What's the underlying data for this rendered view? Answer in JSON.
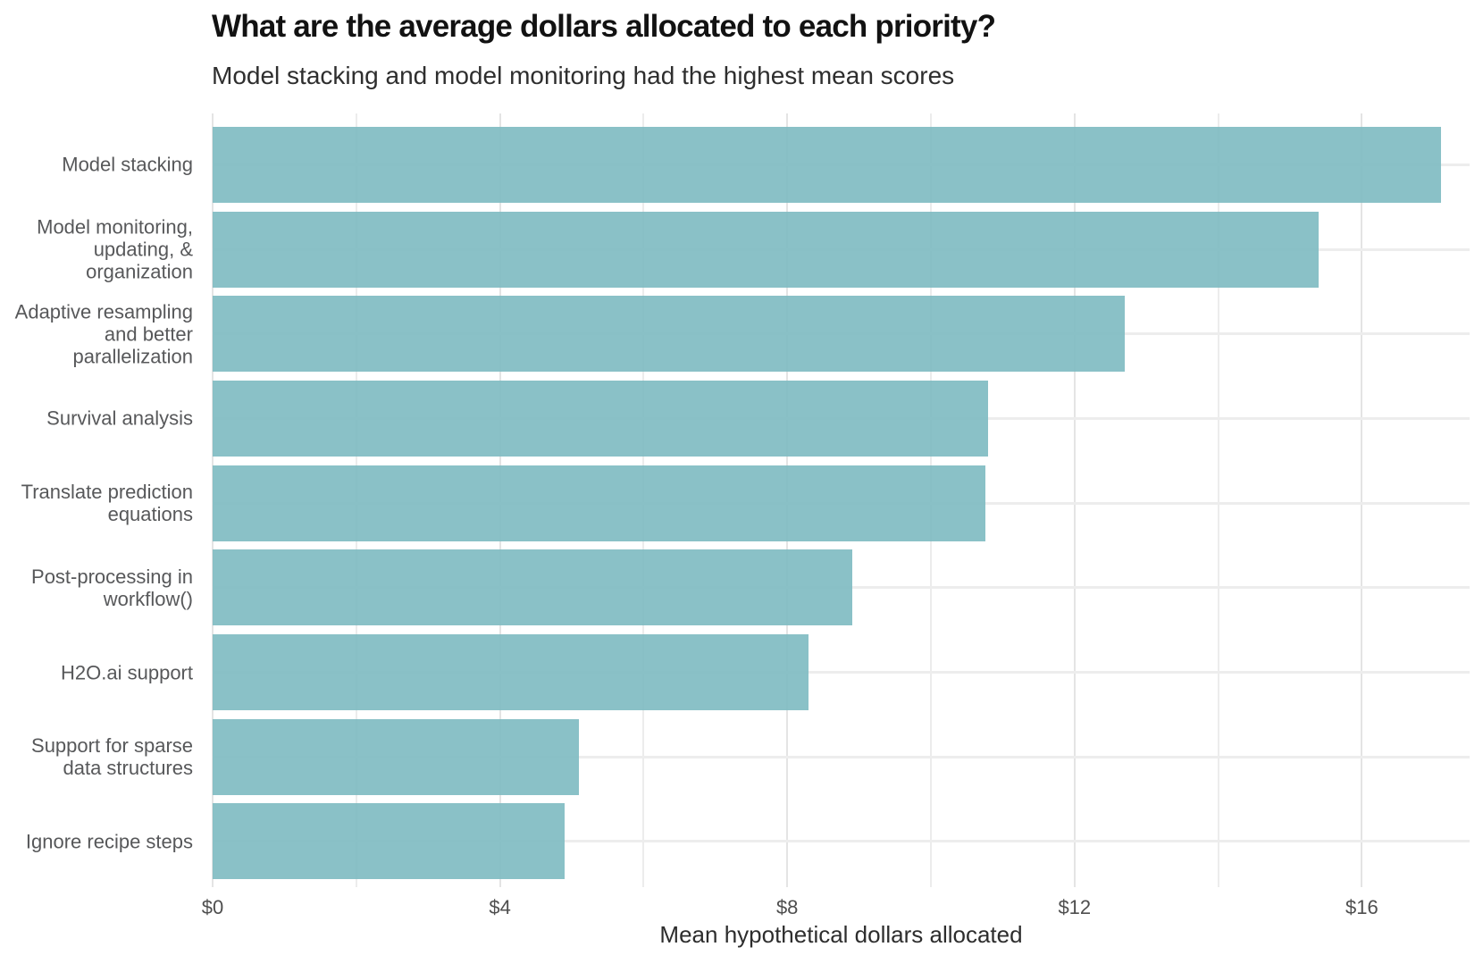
{
  "chart_data": {
    "type": "bar",
    "orientation": "horizontal",
    "title": "What are the average dollars allocated to each priority?",
    "subtitle": "Model stacking and model monitoring had the highest mean scores",
    "xlabel": "Mean hypothetical dollars allocated",
    "ylabel": "",
    "categories": [
      "Model stacking",
      "Model monitoring, updating, & organization",
      "Adaptive resampling and better parallelization",
      "Survival analysis",
      "Translate prediction equations",
      "Post-processing in workflow()",
      "H2O.ai support",
      "Support for sparse data structures",
      "Ignore recipe steps"
    ],
    "category_label_lines": [
      [
        "Model stacking"
      ],
      [
        "Model monitoring,",
        "updating, &",
        "organization"
      ],
      [
        "Adaptive resampling",
        "and better",
        "parallelization"
      ],
      [
        "Survival analysis"
      ],
      [
        "Translate prediction",
        "equations"
      ],
      [
        "Post-processing in",
        "workflow()"
      ],
      [
        "H2O.ai support"
      ],
      [
        "Support for sparse",
        "data structures"
      ],
      [
        "Ignore recipe steps"
      ]
    ],
    "values": [
      17.1,
      15.4,
      12.7,
      10.8,
      10.76,
      8.9,
      8.3,
      5.1,
      4.9
    ],
    "unit": "dollars",
    "xlim": [
      0,
      17.5
    ],
    "x_tick_values": [
      0,
      4,
      8,
      12,
      16
    ],
    "x_tick_labels": [
      "$0",
      "$4",
      "$8",
      "$12",
      "$16"
    ],
    "x_minor_grid_step": 2,
    "grid": "vertical major+minor gridlines, horizontal gridline at each category row center",
    "legend": "none",
    "colors": {
      "bar_fill": "#8ac1c7",
      "gridline_major": "#e4e4e4",
      "gridline_minor": "#ececec",
      "title_text": "#121212",
      "subtitle_text": "#2e2e2e",
      "category_label_text": "#57585a",
      "tick_label_text": "#4e4e4e",
      "axis_title_text": "#2d2d2d",
      "background": "#ffffff"
    }
  }
}
